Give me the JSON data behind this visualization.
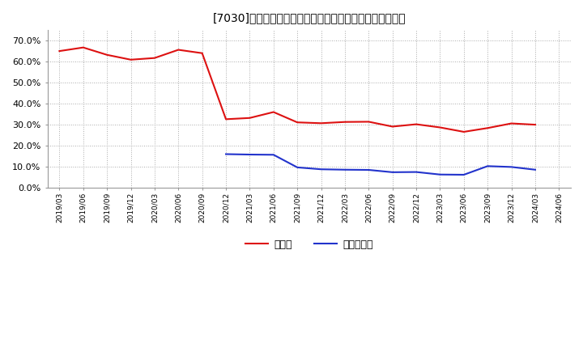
{
  "title": "[7030]　現預金、有利子負債の総資産に対する比率の推移",
  "ylim": [
    0.0,
    0.75
  ],
  "yticks": [
    0.0,
    0.1,
    0.2,
    0.3,
    0.4,
    0.5,
    0.6,
    0.7
  ],
  "background_color": "#ffffff",
  "plot_bg_color": "#ffffff",
  "grid_color": "#aaaaaa",
  "legend_labels": [
    "現預金",
    "有利子負債"
  ],
  "line_colors": [
    "#dd1111",
    "#2233cc"
  ],
  "x_labels": [
    "2019/03",
    "2019/06",
    "2019/09",
    "2019/12",
    "2020/03",
    "2020/06",
    "2020/09",
    "2020/12",
    "2021/03",
    "2021/06",
    "2021/09",
    "2021/12",
    "2022/03",
    "2022/06",
    "2022/09",
    "2022/12",
    "2023/03",
    "2023/06",
    "2023/09",
    "2023/12",
    "2024/03",
    "2024/06"
  ],
  "cash_values": [
    0.65,
    0.667,
    0.632,
    0.609,
    0.617,
    0.656,
    0.64,
    0.326,
    0.332,
    0.36,
    0.311,
    0.307,
    0.313,
    0.314,
    0.291,
    0.302,
    0.287,
    0.266,
    0.284,
    0.306,
    0.3,
    null
  ],
  "debt_values": [
    null,
    null,
    null,
    null,
    null,
    null,
    null,
    0.16,
    0.158,
    0.157,
    0.097,
    0.088,
    0.086,
    0.085,
    0.074,
    0.075,
    0.063,
    0.062,
    0.103,
    0.099,
    0.086,
    null
  ]
}
